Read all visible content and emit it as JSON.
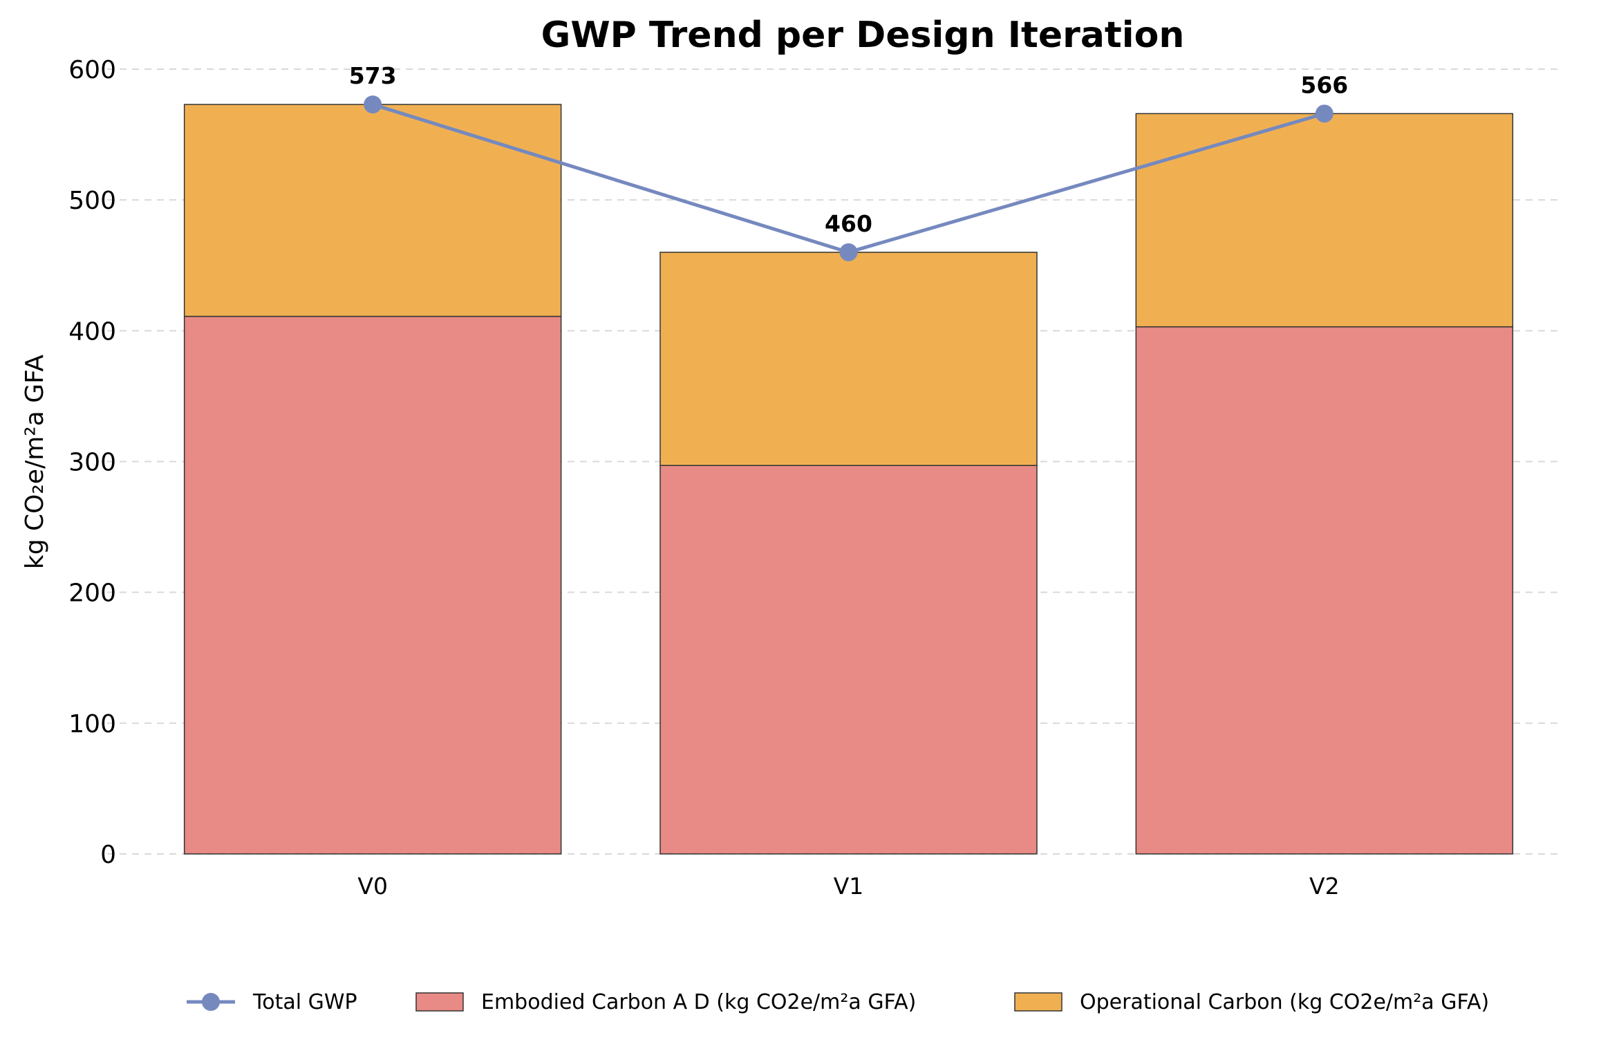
{
  "chart_data": {
    "type": "bar",
    "stacked": true,
    "title": "GWP Trend per Design Iteration",
    "xlabel": "",
    "ylabel": "kg CO₂e/m²a GFA",
    "ylim": [
      0,
      600
    ],
    "yticks": [
      0,
      100,
      200,
      300,
      400,
      500,
      600
    ],
    "grid": "horizontal-dashed",
    "legend_position": "bottom",
    "categories": [
      "V0",
      "V1",
      "V2"
    ],
    "series": [
      {
        "name": "Embodied Carbon A D (kg CO2e/m²a GFA)",
        "type": "bar",
        "color": "#e88a85",
        "values": [
          411,
          297,
          403
        ]
      },
      {
        "name": "Operational Carbon (kg CO2e/m²a GFA)",
        "type": "bar",
        "color": "#f0b052",
        "values": [
          162,
          163,
          163
        ]
      },
      {
        "name": "Total GWP",
        "type": "line",
        "color": "#7589bf",
        "values": [
          573,
          460,
          566
        ]
      }
    ],
    "data_labels": [
      "573",
      "460",
      "566"
    ]
  }
}
